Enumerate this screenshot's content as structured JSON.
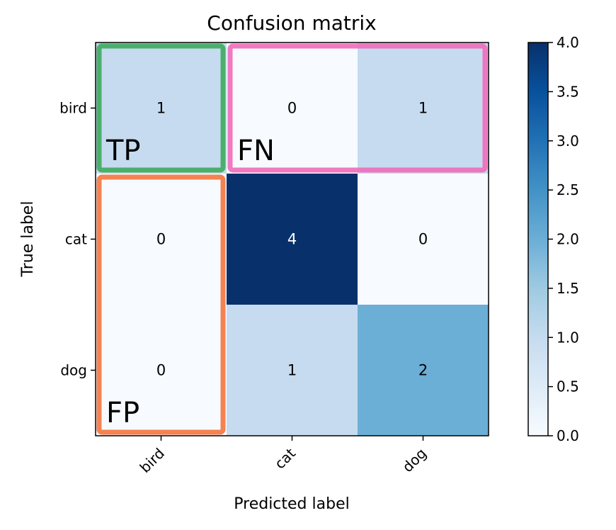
{
  "chart_data": {
    "type": "heatmap",
    "title": "Confusion matrix",
    "xlabel": "Predicted label",
    "ylabel": "True label",
    "x_categories": [
      "bird",
      "cat",
      "dog"
    ],
    "y_categories": [
      "bird",
      "cat",
      "dog"
    ],
    "values": [
      [
        1,
        0,
        1
      ],
      [
        0,
        4,
        0
      ],
      [
        0,
        1,
        2
      ]
    ],
    "colormap": "Blues",
    "vmin": 0,
    "vmax": 4,
    "colorbar_ticks": [
      "0.0",
      "0.5",
      "1.0",
      "1.5",
      "2.0",
      "2.5",
      "3.0",
      "3.5",
      "4.0"
    ],
    "annotations": [
      {
        "label": "TP",
        "color": "#3daa5c",
        "rows": [
          0,
          0
        ],
        "cols": [
          0,
          0
        ]
      },
      {
        "label": "FN",
        "color": "#f06ab9",
        "rows": [
          0,
          0
        ],
        "cols": [
          1,
          2
        ]
      },
      {
        "label": "FP",
        "color": "#f4743e",
        "rows": [
          1,
          2
        ],
        "cols": [
          0,
          0
        ]
      }
    ]
  }
}
